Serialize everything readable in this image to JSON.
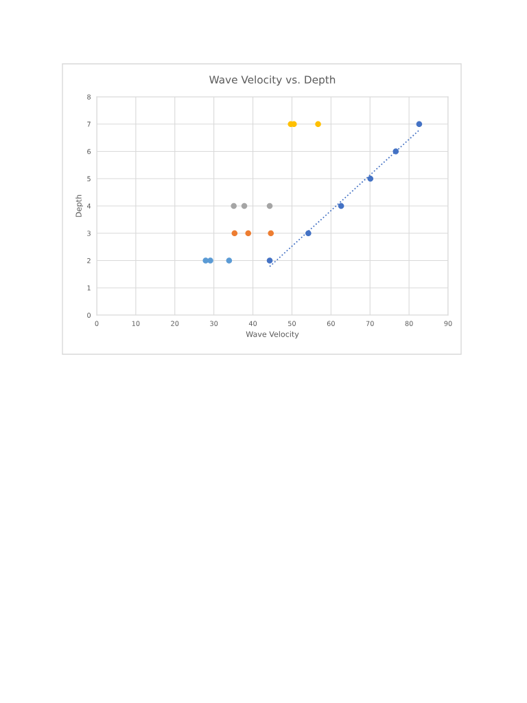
{
  "chart_data": {
    "type": "scatter",
    "title": "Wave Velocity vs. Depth",
    "xlabel": "Wave Velocity",
    "ylabel": "Depth",
    "series": [
      {
        "color": "#5b9bd5",
        "x": [
          27.9,
          29.1,
          33.9
        ],
        "values": [
          2,
          2,
          2
        ]
      },
      {
        "color": "#ed7d31",
        "x": [
          35.3,
          38.8,
          44.6
        ],
        "values": [
          3,
          3,
          3
        ]
      },
      {
        "color": "#a5a5a5",
        "x": [
          35.1,
          37.8,
          44.3
        ],
        "values": [
          4,
          4,
          4
        ]
      },
      {
        "color": "#ffc000",
        "x": [
          49.7,
          50.5,
          56.7
        ],
        "values": [
          7,
          7,
          7
        ]
      },
      {
        "color": "#4472c4",
        "x": [
          44.3,
          54.2,
          62.6,
          70.1,
          76.6,
          82.6
        ],
        "values": [
          2,
          3,
          4,
          5,
          6,
          7
        ]
      },
      {
        "type": "line",
        "color": "#4472c4",
        "line_style": "dotted",
        "marker": "none",
        "x": [
          44.3,
          82.6
        ],
        "values": [
          1.78,
          6.78
        ]
      }
    ],
    "xlim": [
      0,
      90
    ],
    "xticks": [
      0,
      10,
      20,
      30,
      40,
      50,
      60,
      70,
      80,
      90
    ],
    "ylim": [
      0,
      8
    ],
    "yticks": [
      0,
      1,
      2,
      3,
      4,
      5,
      6,
      7,
      8
    ],
    "grid": true,
    "marker": "circle"
  }
}
